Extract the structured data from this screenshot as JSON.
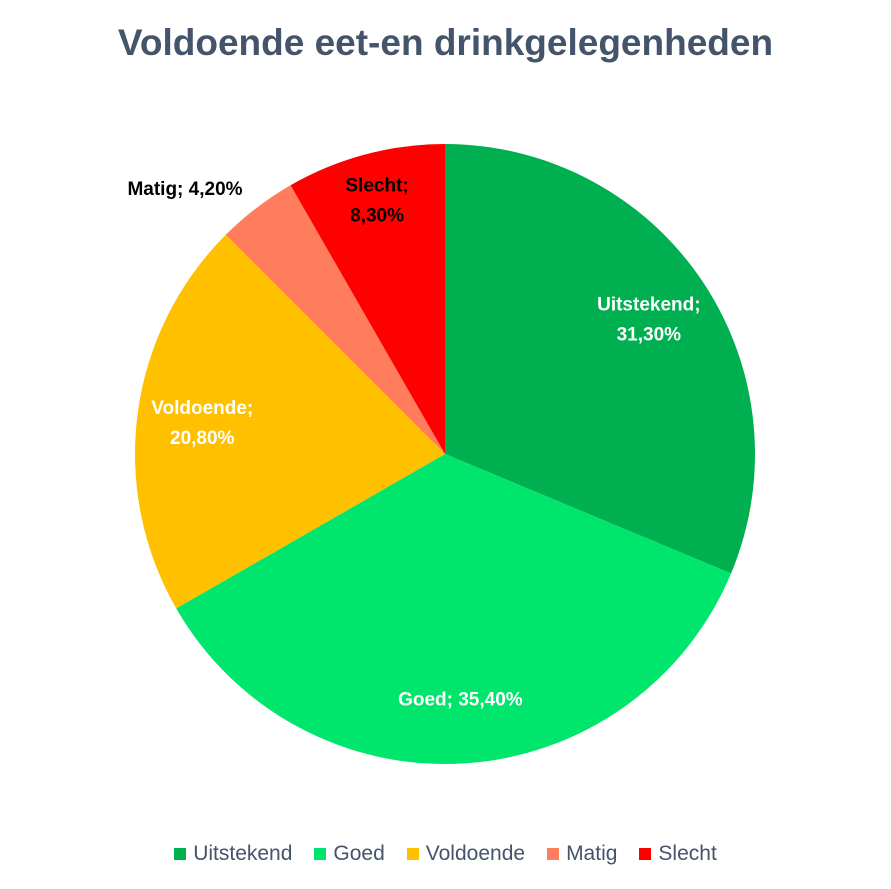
{
  "chart_data": {
    "type": "pie",
    "title": "Voldoende eet-en drinkgelegenheden",
    "categories": [
      "Uitstekend",
      "Goed",
      "Voldoende",
      "Matig",
      "Slecht"
    ],
    "values": [
      31.3,
      35.4,
      20.8,
      4.2,
      8.3
    ],
    "unit": "%",
    "colors": [
      "#00B050",
      "#00E66C",
      "#FFC000",
      "#FF7C5C",
      "#FF0000"
    ],
    "data_labels": [
      [
        "Uitstekend;",
        "31,30%"
      ],
      [
        "Goed; 35,40%"
      ],
      [
        "Voldoende;",
        "20,80%"
      ],
      [
        "Matig; 4,20%"
      ],
      [
        "Slecht;",
        "8,30%"
      ]
    ],
    "label_colors": [
      "#FFFFFF",
      "#FFFFFF",
      "#FFFFFF",
      "#000000",
      "#000000"
    ],
    "legend_position": "bottom",
    "start_angle": "top, clockwise"
  }
}
